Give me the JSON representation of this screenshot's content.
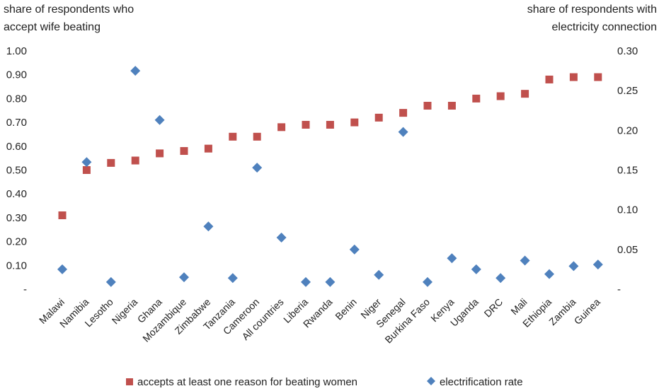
{
  "chart_data": {
    "type": "scatter",
    "ylabel_left": [
      "share of respondents who",
      "accept wife beating"
    ],
    "ylabel_right": [
      "share of respondents with",
      "electricity connection"
    ],
    "y_left": {
      "min": 0,
      "max": 1.0,
      "ticks": [
        "-",
        "0.10",
        "0.20",
        "0.30",
        "0.40",
        "0.50",
        "0.60",
        "0.70",
        "0.80",
        "0.90",
        "1.00"
      ]
    },
    "y_right": {
      "min": 0,
      "max": 0.3,
      "ticks": [
        "-",
        "0.05",
        "0.10",
        "0.15",
        "0.20",
        "0.25",
        "0.30"
      ]
    },
    "categories": [
      "Malawi",
      "Namibia",
      "Lesotho",
      "Nigeria",
      "Ghana",
      "Mozambique",
      "Zimbabwe",
      "Tanzania",
      "Cameroon",
      "All countries",
      "Liberia",
      "Rwanda",
      "Benin",
      "Niger",
      "Senegal",
      "Burkina Faso",
      "Kenya",
      "Uganda",
      "DRC",
      "Mali",
      "Ethiopia",
      "Zambia",
      "Guinea"
    ],
    "series": [
      {
        "name": "accepts at least one reason for beating women",
        "axis": "left",
        "color": "#c0504d",
        "marker": "square",
        "values": [
          0.31,
          0.5,
          0.53,
          0.54,
          0.57,
          0.58,
          0.59,
          0.64,
          0.64,
          0.68,
          0.69,
          0.69,
          0.7,
          0.72,
          0.74,
          0.77,
          0.77,
          0.8,
          0.81,
          0.82,
          0.88,
          0.89,
          0.89
        ]
      },
      {
        "name": "electrification rate",
        "axis": "right",
        "color": "#4f81bd",
        "marker": "diamond",
        "values": [
          0.025,
          0.16,
          0.009,
          0.275,
          0.213,
          0.015,
          0.079,
          0.014,
          0.153,
          0.065,
          0.009,
          0.009,
          0.05,
          0.018,
          0.198,
          0.009,
          0.039,
          0.025,
          0.014,
          0.036,
          0.019,
          0.029,
          0.031
        ]
      }
    ],
    "legend_position": "bottom",
    "grid": false
  }
}
